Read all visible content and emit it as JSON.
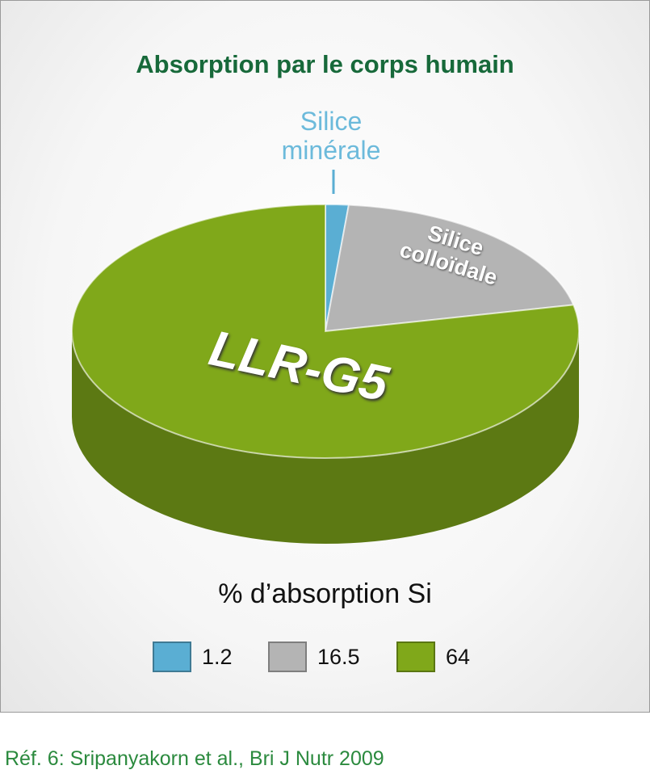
{
  "chart_data": {
    "type": "pie",
    "title": "Absorption par le corps humain",
    "categories": [
      "Silice minérale",
      "Silice colloïdale",
      "LLR-G5"
    ],
    "values": [
      1.2,
      16.5,
      64
    ],
    "colors": [
      "#5aaed3",
      "#b4b4b4",
      "#80a81a"
    ],
    "label": "% d’absorption Si",
    "source": "Réf. 6: Sripanyakorn et al., Bri J Nutr 2009"
  }
}
